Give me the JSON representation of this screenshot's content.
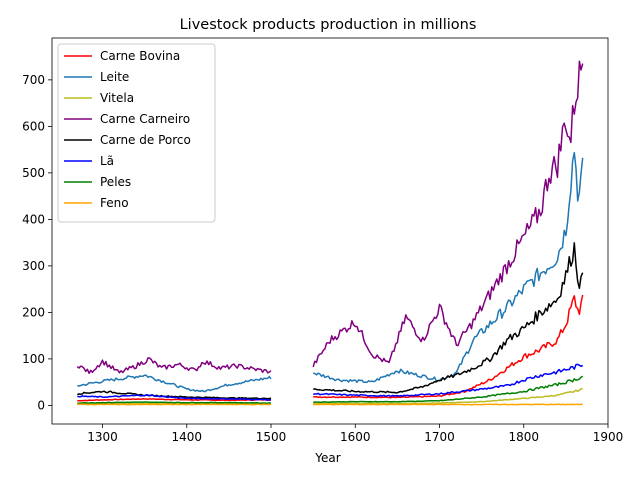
{
  "chart_data": {
    "type": "line",
    "title": "Livestock products production in millions",
    "xlabel": "Year",
    "ylabel": "",
    "xlim": [
      1240,
      1900
    ],
    "ylim": [
      -40,
      790
    ],
    "xticks": [
      1300,
      1400,
      1500,
      1600,
      1700,
      1800,
      1900
    ],
    "yticks": [
      0,
      100,
      200,
      300,
      400,
      500,
      600,
      700
    ],
    "grid": false,
    "legend_position": "upper-left",
    "gap": [
      1500,
      1550
    ],
    "x_segments": [
      [
        1270,
        1500
      ],
      [
        1550,
        1870
      ]
    ],
    "series": [
      {
        "name": "Carne Bovina",
        "color": "#ff0000",
        "x": [
          1270,
          1300,
          1350,
          1400,
          1450,
          1500,
          1550,
          1600,
          1650,
          1700,
          1730,
          1760,
          1780,
          1800,
          1820,
          1840,
          1850,
          1860,
          1865,
          1870
        ],
        "y": [
          10,
          12,
          14,
          12,
          11,
          12,
          18,
          18,
          17,
          20,
          30,
          55,
          80,
          105,
          120,
          140,
          175,
          230,
          200,
          225
        ]
      },
      {
        "name": "Leite",
        "color": "#1f77b4",
        "x": [
          1270,
          1300,
          1350,
          1400,
          1420,
          1450,
          1500,
          1550,
          1580,
          1620,
          1650,
          1700,
          1720,
          1740,
          1760,
          1780,
          1800,
          1820,
          1840,
          1850,
          1860,
          1865,
          1870
        ],
        "y": [
          42,
          52,
          65,
          35,
          30,
          45,
          60,
          70,
          55,
          50,
          75,
          55,
          70,
          140,
          175,
          210,
          250,
          285,
          320,
          380,
          555,
          440,
          505
        ]
      },
      {
        "name": "Vitela",
        "color": "#bcbd22",
        "x": [
          1270,
          1350,
          1400,
          1450,
          1500,
          1550,
          1600,
          1650,
          1700,
          1750,
          1800,
          1820,
          1840,
          1860,
          1870
        ],
        "y": [
          3,
          4,
          3,
          3,
          3,
          4,
          4,
          4,
          5,
          8,
          15,
          18,
          22,
          30,
          35
        ]
      },
      {
        "name": "Carne Carneiro",
        "color": "#800080",
        "x": [
          1270,
          1285,
          1300,
          1320,
          1340,
          1355,
          1370,
          1390,
          1410,
          1420,
          1440,
          1460,
          1480,
          1500,
          1550,
          1570,
          1600,
          1620,
          1640,
          1660,
          1680,
          1700,
          1720,
          1740,
          1760,
          1780,
          1800,
          1820,
          1830,
          1840,
          1850,
          1855,
          1860,
          1865,
          1870
        ],
        "y": [
          88,
          70,
          95,
          70,
          85,
          100,
          80,
          88,
          75,
          95,
          80,
          85,
          78,
          72,
          85,
          140,
          180,
          110,
          90,
          190,
          140,
          210,
          130,
          180,
          240,
          300,
          360,
          420,
          500,
          520,
          620,
          560,
          650,
          700,
          745
        ]
      },
      {
        "name": "Carne de Porco",
        "color": "#000000",
        "x": [
          1270,
          1300,
          1350,
          1400,
          1450,
          1500,
          1550,
          1600,
          1650,
          1680,
          1700,
          1720,
          1740,
          1760,
          1780,
          1800,
          1820,
          1840,
          1850,
          1860,
          1865,
          1870
        ],
        "y": [
          25,
          30,
          22,
          18,
          16,
          15,
          35,
          30,
          28,
          40,
          55,
          65,
          80,
          100,
          140,
          165,
          200,
          230,
          280,
          340,
          265,
          270
        ]
      },
      {
        "name": "Lã",
        "color": "#0000ff",
        "x": [
          1270,
          1300,
          1350,
          1400,
          1450,
          1500,
          1550,
          1600,
          1650,
          1700,
          1750,
          1780,
          1800,
          1820,
          1840,
          1860,
          1870
        ],
        "y": [
          20,
          18,
          22,
          15,
          14,
          12,
          25,
          22,
          20,
          25,
          35,
          42,
          55,
          65,
          72,
          82,
          88
        ]
      },
      {
        "name": "Peles",
        "color": "#008000",
        "x": [
          1270,
          1300,
          1350,
          1400,
          1450,
          1500,
          1550,
          1600,
          1650,
          1700,
          1750,
          1800,
          1820,
          1840,
          1860,
          1870
        ],
        "y": [
          5,
          6,
          7,
          6,
          6,
          5,
          7,
          8,
          8,
          10,
          18,
          30,
          38,
          45,
          55,
          62
        ]
      },
      {
        "name": "Feno",
        "color": "#ffa500",
        "x": [
          1270,
          1400,
          1500,
          1550,
          1700,
          1870
        ],
        "y": [
          2,
          2,
          2,
          2,
          2,
          2
        ]
      }
    ]
  }
}
